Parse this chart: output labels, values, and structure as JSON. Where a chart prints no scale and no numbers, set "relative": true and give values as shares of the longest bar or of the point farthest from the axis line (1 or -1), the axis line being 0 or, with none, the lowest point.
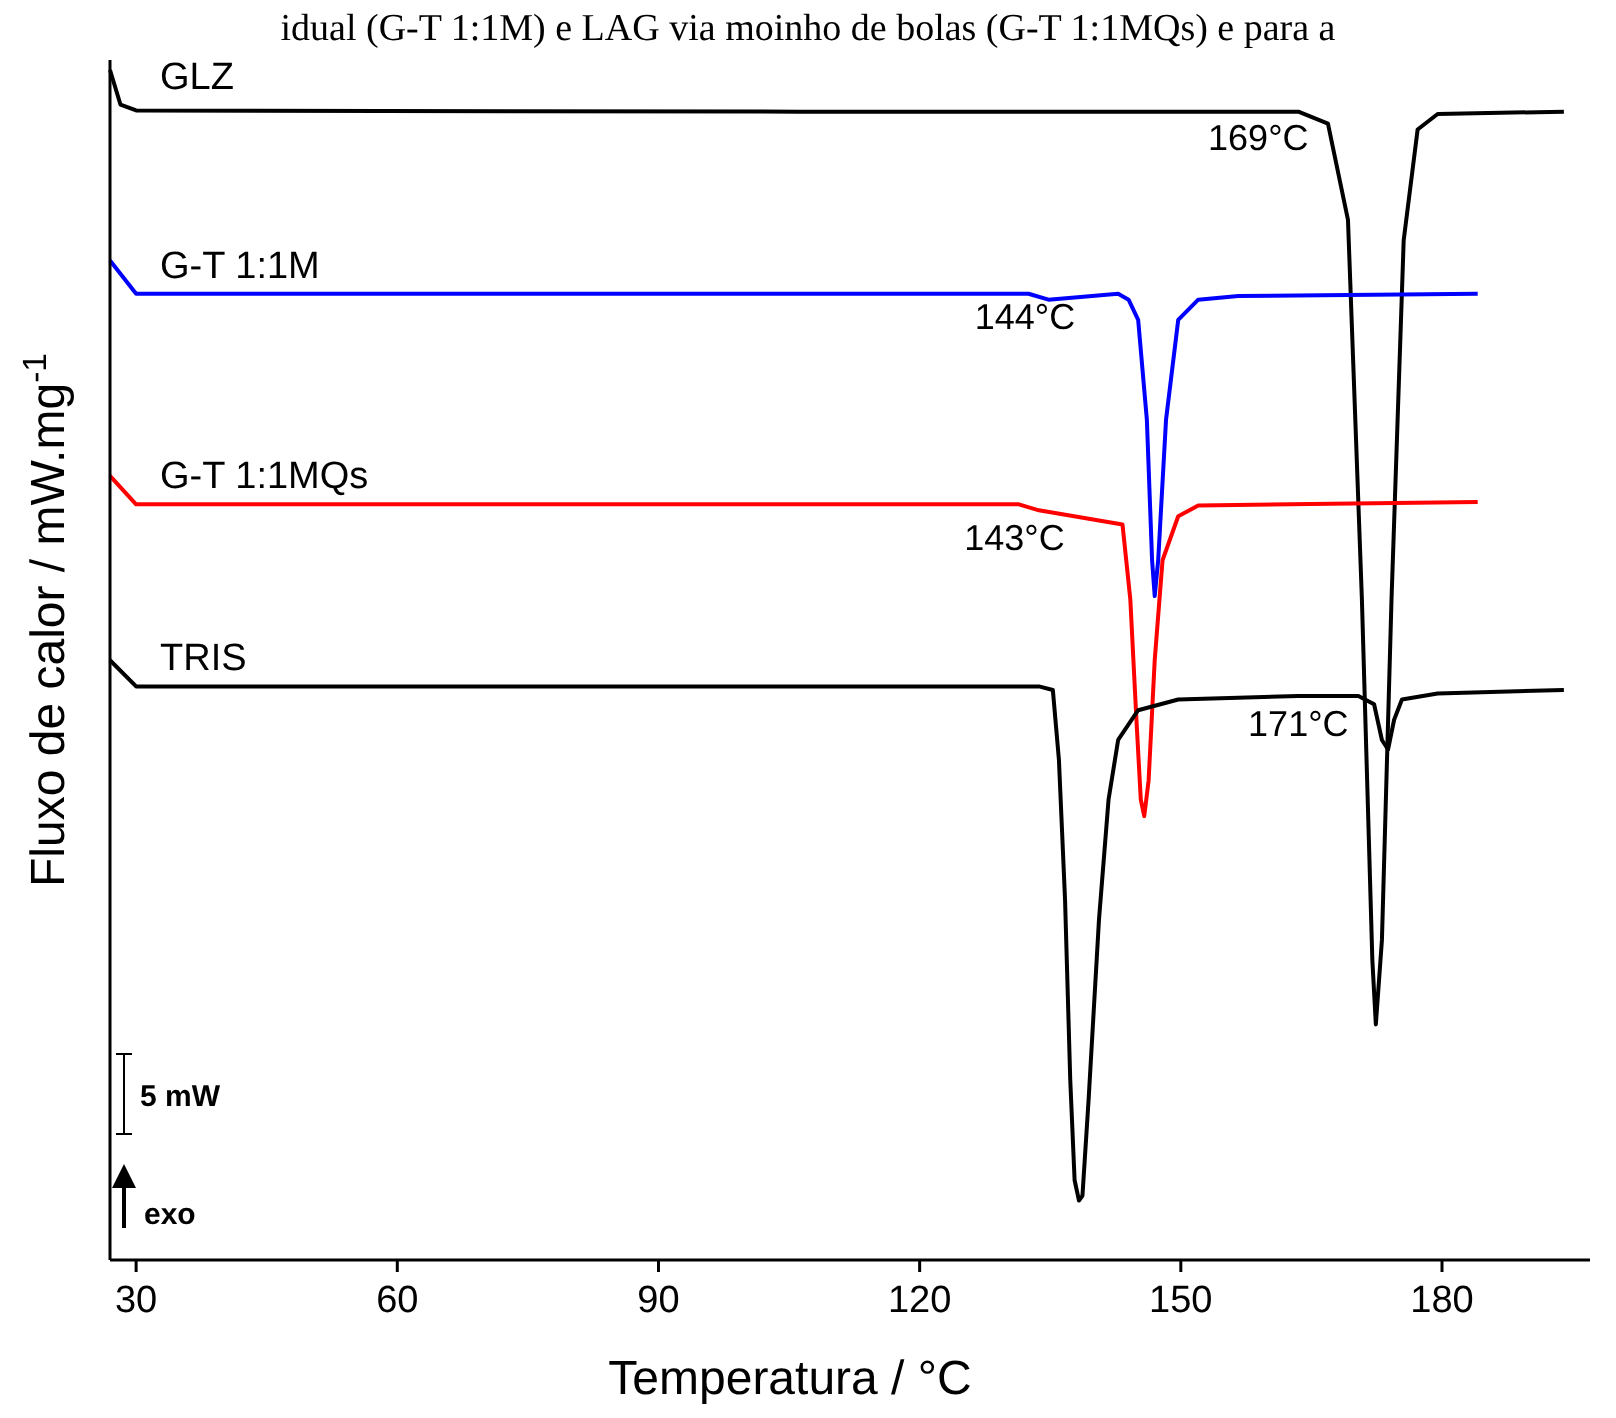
{
  "chart_data": {
    "type": "line",
    "title": "idual (G-T 1:1M) e LAG via moinho de bolas (G-T 1:1MQs) e para a",
    "xlabel": "Temperatura / °C",
    "ylabel": "Fluxo de calor / mW.mg$^{-1}$",
    "relative": true,
    "xlim": [
      27,
      197
    ],
    "xticks": [
      30,
      60,
      90,
      120,
      150,
      180
    ],
    "grid": false,
    "legend": false,
    "marker": "none",
    "line_style": "solid",
    "series": [
      {
        "name": "GLZ",
        "color": "#000000",
        "x": [
          27,
          28.2,
          30,
          106.1,
          163.5,
          166.9,
          169.2,
          170.8,
          172.0,
          172.4,
          173.1,
          174.2,
          175.6,
          177.2,
          179.5,
          194.0
        ],
        "values": [
          1.0,
          0.971,
          0.966,
          0.965,
          0.965,
          0.955,
          0.874,
          0.555,
          0.252,
          0.198,
          0.269,
          0.555,
          0.857,
          0.95,
          0.963,
          0.965
        ]
      },
      {
        "name": "G-T 1:1M",
        "color": "#0000ff",
        "x": [
          27,
          30,
          132.5,
          134.8,
          142.8,
          144.0,
          145.1,
          146.1,
          146.7,
          147.0,
          147.4,
          148.3,
          149.7,
          152.0,
          156.6,
          184.1
        ],
        "values": [
          0.84,
          0.812,
          0.812,
          0.807,
          0.812,
          0.807,
          0.79,
          0.706,
          0.588,
          0.558,
          0.588,
          0.706,
          0.79,
          0.807,
          0.81,
          0.812
        ]
      },
      {
        "name": "G-T 1:1MQs",
        "color": "#ff0000",
        "x": [
          27,
          30,
          131.4,
          133.7,
          143.3,
          144.2,
          144.9,
          145.4,
          145.8,
          146.3,
          147.0,
          147.9,
          149.7,
          152.0,
          184.1
        ],
        "values": [
          0.659,
          0.635,
          0.635,
          0.63,
          0.618,
          0.555,
          0.454,
          0.387,
          0.373,
          0.403,
          0.504,
          0.588,
          0.625,
          0.634,
          0.637
        ]
      },
      {
        "name": "TRIS",
        "color": "#000000",
        "x": [
          27,
          30,
          133.7,
          135.3,
          136.0,
          136.7,
          137.3,
          137.8,
          138.3,
          138.7,
          139.4,
          140.6,
          141.7,
          142.8,
          145.1,
          149.7,
          163.5,
          170.4,
          172.2,
          173.1,
          173.8,
          174.5,
          175.4,
          179.5,
          194.0
        ],
        "values": [
          0.504,
          0.482,
          0.482,
          0.479,
          0.42,
          0.303,
          0.151,
          0.067,
          0.05,
          0.054,
          0.134,
          0.286,
          0.387,
          0.437,
          0.462,
          0.471,
          0.474,
          0.474,
          0.467,
          0.437,
          0.429,
          0.454,
          0.471,
          0.476,
          0.479
        ]
      }
    ],
    "annotations": [
      "169°C",
      "144°C",
      "143°C",
      "171°C",
      "5 mW",
      "exo"
    ]
  }
}
